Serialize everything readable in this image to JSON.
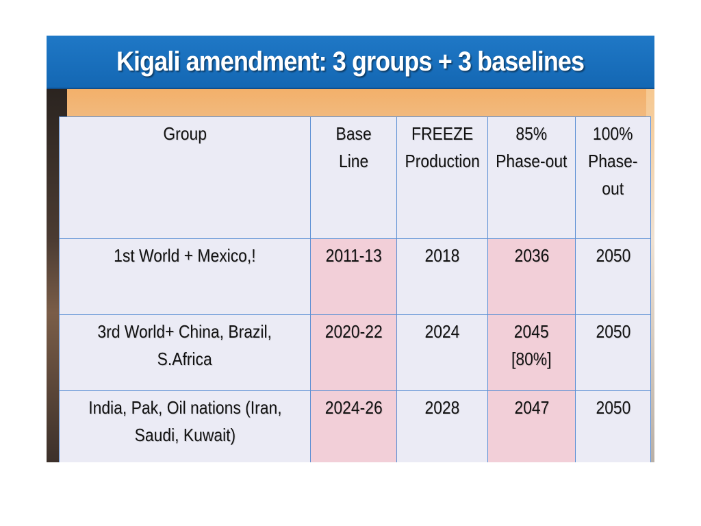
{
  "slide": {
    "title": "Kigali amendment: 3 groups + 3 baselines"
  },
  "table": {
    "headers": {
      "group": "Group",
      "baseline": "Base\nLine",
      "freeze": "FREEZE\nProduction",
      "phase85": "85%\nPhase-out",
      "phase100": "100%\nPhase-\nout"
    },
    "rows": [
      {
        "group": "1st World + Mexico,!",
        "baseline": "2011-13",
        "freeze": "2018",
        "phase85": "2036",
        "phase100": "2050"
      },
      {
        "group": "3rd World+ China, Brazil,\nS.Africa",
        "baseline": "2020-22",
        "freeze": "2024",
        "phase85": "2045\n[80%]",
        "phase100": "2050"
      },
      {
        "group": "India, Pak, Oil nations (Iran,\nSaudi, Kuwait)",
        "baseline": "2024-26",
        "freeze": "2028",
        "phase85": "2047",
        "phase100": "2050"
      }
    ]
  },
  "colors": {
    "title_bar": "#1a6fbe",
    "highlight_cell": "#f2cfd8",
    "table_bg": "#e9e9f4",
    "grid_line": "#5b8fd4"
  }
}
